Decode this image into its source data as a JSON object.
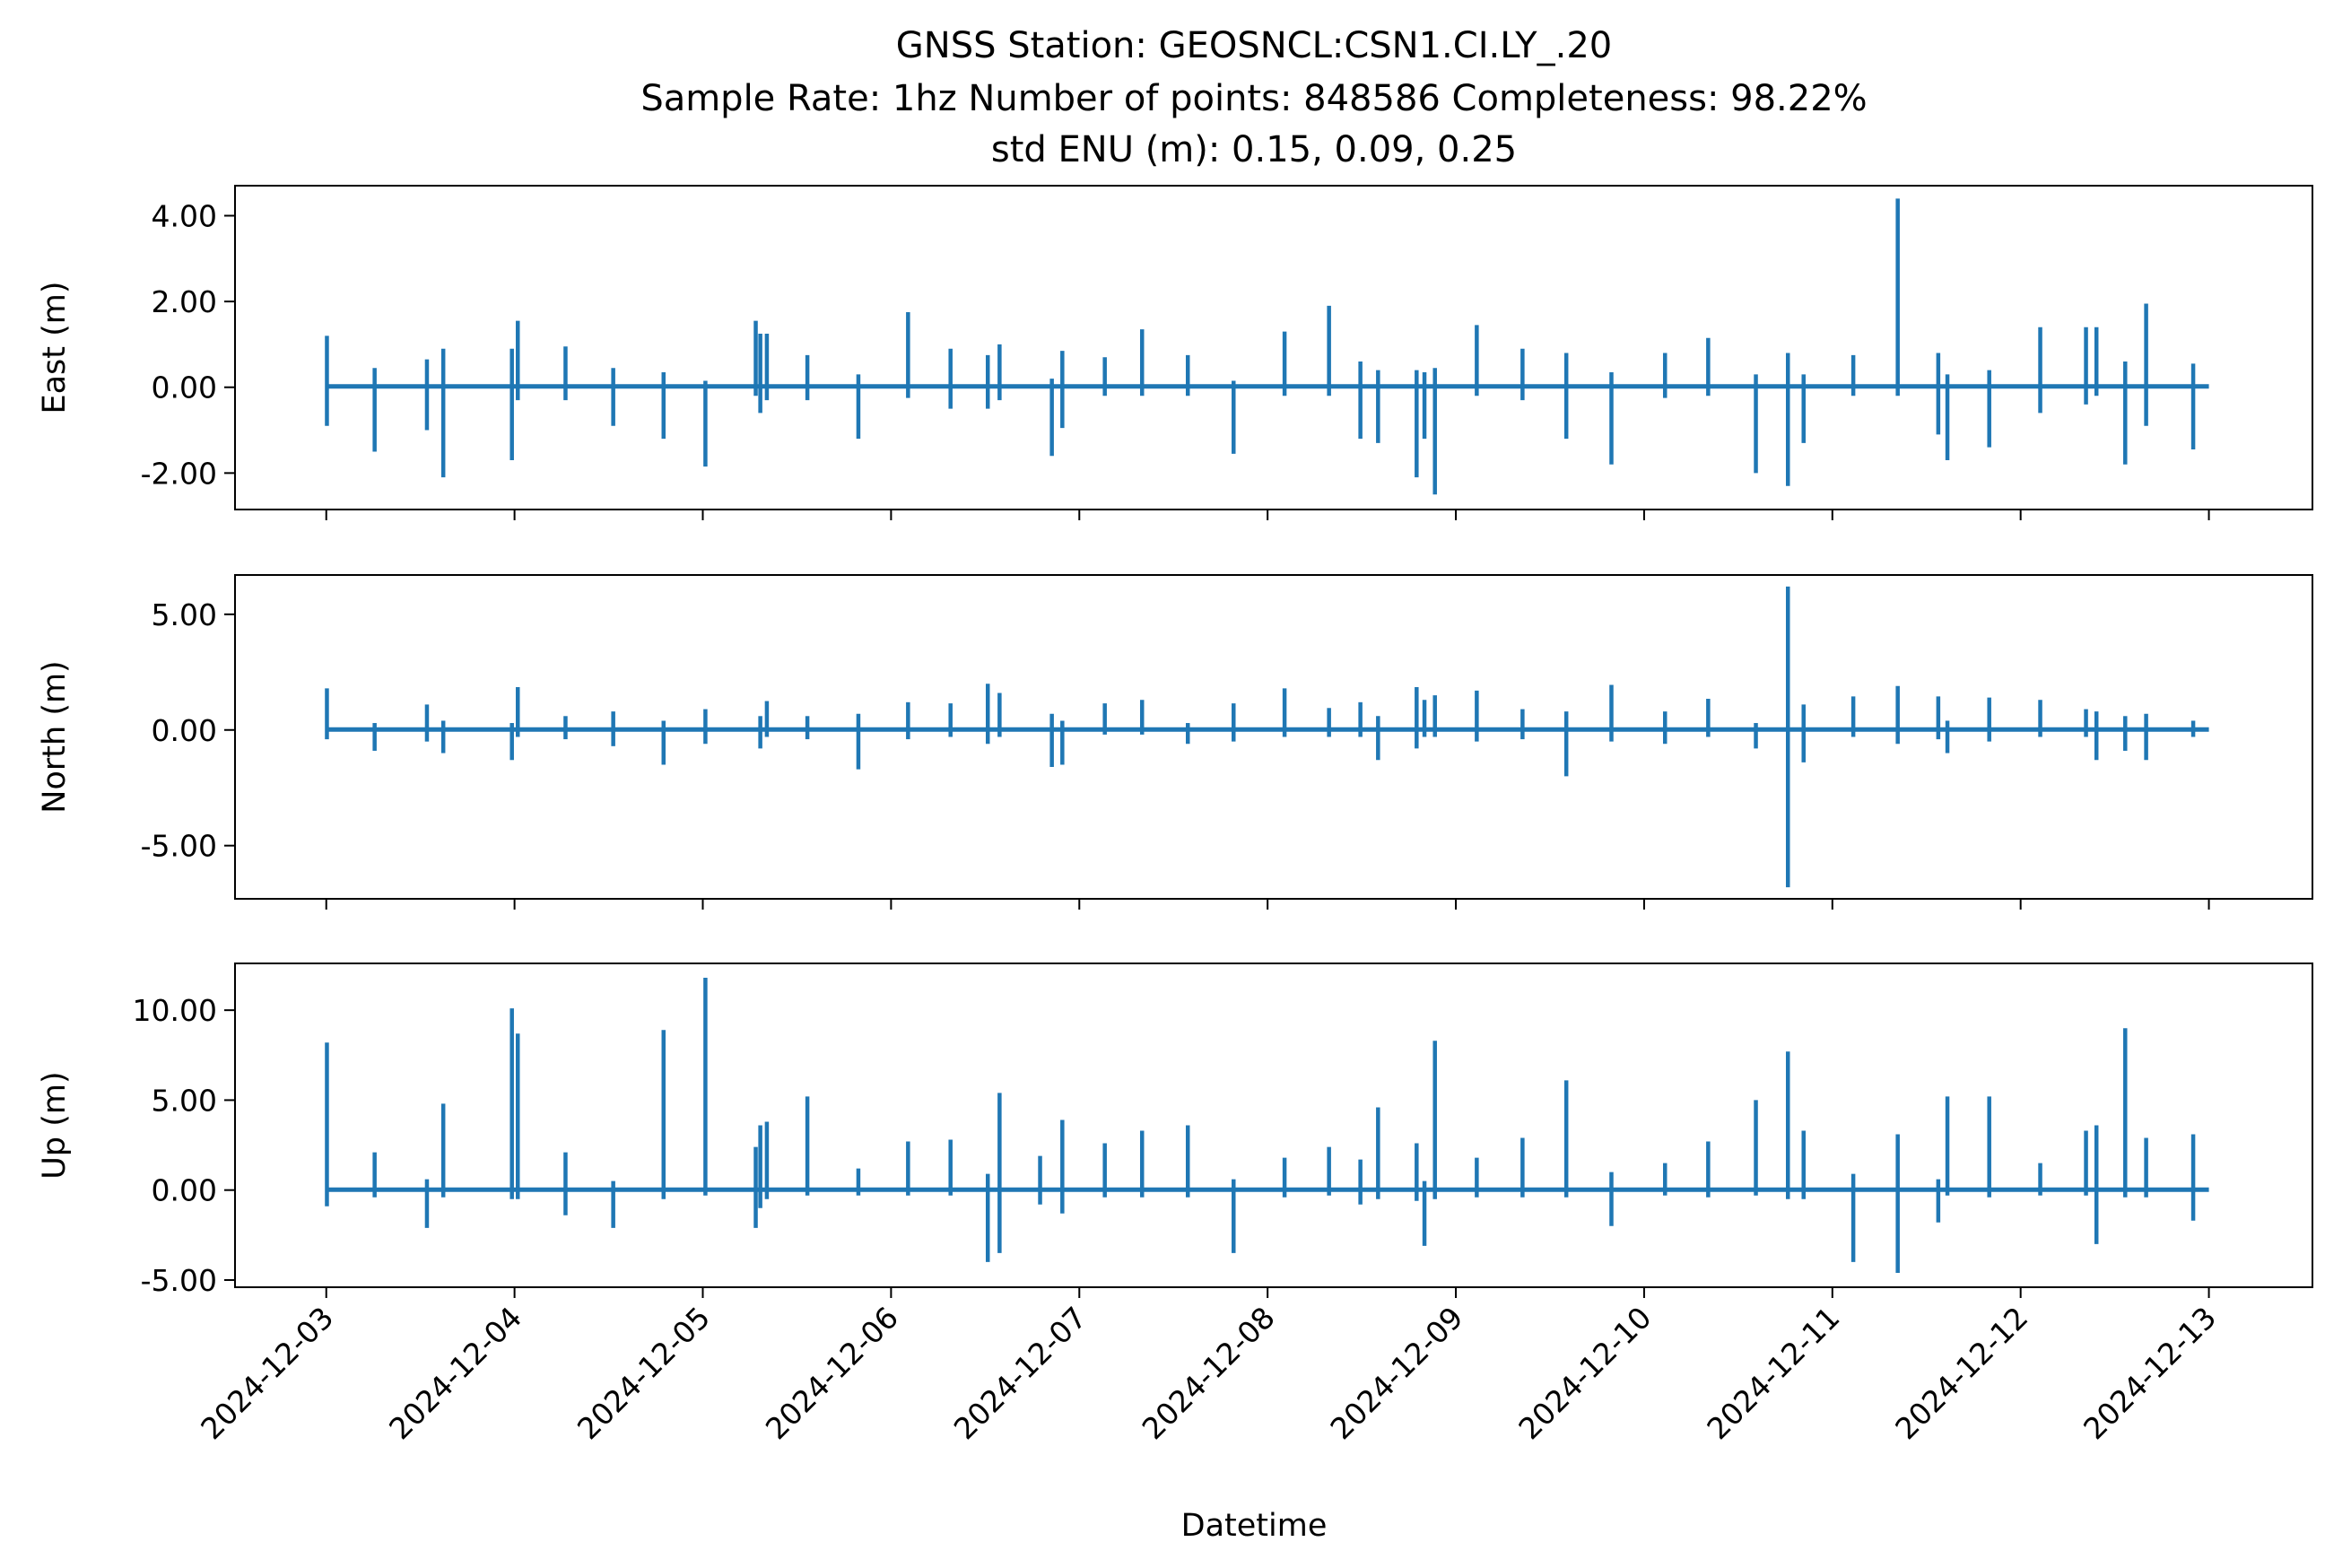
{
  "chart_data": {
    "type": "line",
    "title_lines": [
      "GNSS Station: GEOSNCL:CSN1.CI.LY_.20",
      "Sample Rate: 1hz   Number of points: 848586    Completeness:  98.22%",
      "std ENU (m):  0.15, 0.09, 0.25"
    ],
    "xlabel": "Datetime",
    "x_ticks": [
      "2024-12-03",
      "2024-12-04",
      "2024-12-05",
      "2024-12-06",
      "2024-12-07",
      "2024-12-08",
      "2024-12-09",
      "2024-12-10",
      "2024-12-11",
      "2024-12-12",
      "2024-12-13"
    ],
    "xlim": [
      "2024-12-02T12:22:00",
      "2024-12-13T13:12:00"
    ],
    "line_color": "#1f77b4",
    "panels": [
      {
        "ylabel": "East (m)",
        "ylim": [
          -2.85,
          4.7
        ],
        "y_ticks": [
          4.0,
          2.0,
          0.0,
          -2.0
        ],
        "y_tick_labels": [
          "4.00",
          "2.00",
          "0.00",
          "-2.00"
        ],
        "spikes": [
          {
            "t": "2024-12-03T00:05:00",
            "min": -0.9,
            "max": 1.2
          },
          {
            "t": "2024-12-03T06:10:00",
            "min": -1.5,
            "max": 0.45
          },
          {
            "t": "2024-12-03T12:50:00",
            "min": -1.0,
            "max": 0.65
          },
          {
            "t": "2024-12-03T14:55:00",
            "min": -2.1,
            "max": 0.9
          },
          {
            "t": "2024-12-03T23:40:00",
            "min": -1.7,
            "max": 0.9
          },
          {
            "t": "2024-12-04T00:25:00",
            "min": -0.3,
            "max": 1.55
          },
          {
            "t": "2024-12-04T06:30:00",
            "min": -0.3,
            "max": 0.95
          },
          {
            "t": "2024-12-04T12:35:00",
            "min": -0.9,
            "max": 0.45
          },
          {
            "t": "2024-12-04T19:00:00",
            "min": -1.2,
            "max": 0.35
          },
          {
            "t": "2024-12-05T00:20:00",
            "min": -1.85,
            "max": 0.15
          },
          {
            "t": "2024-12-05T06:45:00",
            "min": -0.2,
            "max": 1.55
          },
          {
            "t": "2024-12-05T07:20:00",
            "min": -0.6,
            "max": 1.25
          },
          {
            "t": "2024-12-05T08:10:00",
            "min": -0.3,
            "max": 1.25
          },
          {
            "t": "2024-12-05T13:20:00",
            "min": -0.3,
            "max": 0.75
          },
          {
            "t": "2024-12-05T19:50:00",
            "min": -1.2,
            "max": 0.3
          },
          {
            "t": "2024-12-06T02:10:00",
            "min": -0.25,
            "max": 1.75
          },
          {
            "t": "2024-12-06T07:35:00",
            "min": -0.5,
            "max": 0.9
          },
          {
            "t": "2024-12-06T12:20:00",
            "min": -0.5,
            "max": 0.75
          },
          {
            "t": "2024-12-06T13:50:00",
            "min": -0.3,
            "max": 1.0
          },
          {
            "t": "2024-12-06T20:30:00",
            "min": -1.6,
            "max": 0.2
          },
          {
            "t": "2024-12-06T21:50:00",
            "min": -0.95,
            "max": 0.85
          },
          {
            "t": "2024-12-07T03:15:00",
            "min": -0.2,
            "max": 0.7
          },
          {
            "t": "2024-12-07T08:00:00",
            "min": -0.2,
            "max": 1.35
          },
          {
            "t": "2024-12-07T13:50:00",
            "min": -0.2,
            "max": 0.75
          },
          {
            "t": "2024-12-07T19:40:00",
            "min": -1.55,
            "max": 0.15
          },
          {
            "t": "2024-12-08T02:10:00",
            "min": -0.2,
            "max": 1.3
          },
          {
            "t": "2024-12-08T07:50:00",
            "min": -0.2,
            "max": 1.9
          },
          {
            "t": "2024-12-08T11:50:00",
            "min": -1.2,
            "max": 0.6
          },
          {
            "t": "2024-12-08T14:05:00",
            "min": -1.3,
            "max": 0.4
          },
          {
            "t": "2024-12-08T19:00:00",
            "min": -2.1,
            "max": 0.4
          },
          {
            "t": "2024-12-08T20:00:00",
            "min": -1.2,
            "max": 0.35
          },
          {
            "t": "2024-12-08T21:20:00",
            "min": -2.5,
            "max": 0.45
          },
          {
            "t": "2024-12-09T02:40:00",
            "min": -0.2,
            "max": 1.45
          },
          {
            "t": "2024-12-09T08:30:00",
            "min": -0.3,
            "max": 0.9
          },
          {
            "t": "2024-12-09T14:05:00",
            "min": -1.2,
            "max": 0.8
          },
          {
            "t": "2024-12-09T19:50:00",
            "min": -1.8,
            "max": 0.35
          },
          {
            "t": "2024-12-10T02:40:00",
            "min": -0.25,
            "max": 0.8
          },
          {
            "t": "2024-12-10T08:10:00",
            "min": -0.2,
            "max": 1.15
          },
          {
            "t": "2024-12-10T14:15:00",
            "min": -2.0,
            "max": 0.3
          },
          {
            "t": "2024-12-10T18:20:00",
            "min": -2.3,
            "max": 0.8
          },
          {
            "t": "2024-12-10T20:20:00",
            "min": -1.3,
            "max": 0.3
          },
          {
            "t": "2024-12-11T02:40:00",
            "min": -0.2,
            "max": 0.75
          },
          {
            "t": "2024-12-11T08:20:00",
            "min": -0.2,
            "max": 4.4
          },
          {
            "t": "2024-12-11T13:30:00",
            "min": -1.1,
            "max": 0.8
          },
          {
            "t": "2024-12-11T14:40:00",
            "min": -1.7,
            "max": 0.3
          },
          {
            "t": "2024-12-11T20:00:00",
            "min": -1.4,
            "max": 0.4
          },
          {
            "t": "2024-12-12T02:30:00",
            "min": -0.6,
            "max": 1.4
          },
          {
            "t": "2024-12-12T08:20:00",
            "min": -0.4,
            "max": 1.4
          },
          {
            "t": "2024-12-12T09:40:00",
            "min": -0.2,
            "max": 1.4
          },
          {
            "t": "2024-12-12T13:20:00",
            "min": -1.8,
            "max": 0.6
          },
          {
            "t": "2024-12-12T16:00:00",
            "min": -0.9,
            "max": 1.95
          },
          {
            "t": "2024-12-12T22:00:00",
            "min": -1.45,
            "max": 0.55
          }
        ]
      },
      {
        "ylabel": "North (m)",
        "ylim": [
          -7.3,
          6.7
        ],
        "y_ticks": [
          5.0,
          0.0,
          -5.0
        ],
        "y_tick_labels": [
          "5.00",
          "0.00",
          "-5.00"
        ],
        "spikes": [
          {
            "t": "2024-12-03T00:05:00",
            "min": -0.4,
            "max": 1.8
          },
          {
            "t": "2024-12-03T06:10:00",
            "min": -0.9,
            "max": 0.3
          },
          {
            "t": "2024-12-03T12:50:00",
            "min": -0.5,
            "max": 1.1
          },
          {
            "t": "2024-12-03T14:55:00",
            "min": -1.0,
            "max": 0.4
          },
          {
            "t": "2024-12-03T23:40:00",
            "min": -1.3,
            "max": 0.3
          },
          {
            "t": "2024-12-04T00:25:00",
            "min": -0.3,
            "max": 1.85
          },
          {
            "t": "2024-12-04T06:30:00",
            "min": -0.4,
            "max": 0.6
          },
          {
            "t": "2024-12-04T12:35:00",
            "min": -0.7,
            "max": 0.8
          },
          {
            "t": "2024-12-04T19:00:00",
            "min": -1.5,
            "max": 0.4
          },
          {
            "t": "2024-12-05T00:20:00",
            "min": -0.6,
            "max": 0.9
          },
          {
            "t": "2024-12-05T07:20:00",
            "min": -0.8,
            "max": 0.6
          },
          {
            "t": "2024-12-05T08:10:00",
            "min": -0.3,
            "max": 1.25
          },
          {
            "t": "2024-12-05T13:20:00",
            "min": -0.4,
            "max": 0.6
          },
          {
            "t": "2024-12-05T19:50:00",
            "min": -1.7,
            "max": 0.7
          },
          {
            "t": "2024-12-06T02:10:00",
            "min": -0.4,
            "max": 1.2
          },
          {
            "t": "2024-12-06T07:35:00",
            "min": -0.3,
            "max": 1.15
          },
          {
            "t": "2024-12-06T12:20:00",
            "min": -0.6,
            "max": 2.0
          },
          {
            "t": "2024-12-06T13:50:00",
            "min": -0.3,
            "max": 1.6
          },
          {
            "t": "2024-12-06T20:30:00",
            "min": -1.6,
            "max": 0.7
          },
          {
            "t": "2024-12-06T21:50:00",
            "min": -1.5,
            "max": 0.4
          },
          {
            "t": "2024-12-07T03:15:00",
            "min": -0.2,
            "max": 1.15
          },
          {
            "t": "2024-12-07T08:00:00",
            "min": -0.2,
            "max": 1.3
          },
          {
            "t": "2024-12-07T13:50:00",
            "min": -0.6,
            "max": 0.3
          },
          {
            "t": "2024-12-07T19:40:00",
            "min": -0.5,
            "max": 1.15
          },
          {
            "t": "2024-12-08T02:10:00",
            "min": -0.3,
            "max": 1.8
          },
          {
            "t": "2024-12-08T07:50:00",
            "min": -0.3,
            "max": 0.95
          },
          {
            "t": "2024-12-08T11:50:00",
            "min": -0.3,
            "max": 1.2
          },
          {
            "t": "2024-12-08T14:05:00",
            "min": -1.3,
            "max": 0.6
          },
          {
            "t": "2024-12-08T19:00:00",
            "min": -0.8,
            "max": 1.85
          },
          {
            "t": "2024-12-08T20:00:00",
            "min": -0.3,
            "max": 1.3
          },
          {
            "t": "2024-12-08T21:20:00",
            "min": -0.3,
            "max": 1.5
          },
          {
            "t": "2024-12-09T02:40:00",
            "min": -0.5,
            "max": 1.7
          },
          {
            "t": "2024-12-09T08:30:00",
            "min": -0.4,
            "max": 0.9
          },
          {
            "t": "2024-12-09T14:05:00",
            "min": -2.0,
            "max": 0.8
          },
          {
            "t": "2024-12-09T19:50:00",
            "min": -0.5,
            "max": 1.95
          },
          {
            "t": "2024-12-10T02:40:00",
            "min": -0.6,
            "max": 0.8
          },
          {
            "t": "2024-12-10T08:10:00",
            "min": -0.3,
            "max": 1.35
          },
          {
            "t": "2024-12-10T14:15:00",
            "min": -0.8,
            "max": 0.3
          },
          {
            "t": "2024-12-10T18:20:00",
            "min": -6.8,
            "max": 6.2
          },
          {
            "t": "2024-12-10T20:20:00",
            "min": -1.4,
            "max": 1.1
          },
          {
            "t": "2024-12-11T02:40:00",
            "min": -0.3,
            "max": 1.45
          },
          {
            "t": "2024-12-11T08:20:00",
            "min": -0.6,
            "max": 1.9
          },
          {
            "t": "2024-12-11T13:30:00",
            "min": -0.4,
            "max": 1.45
          },
          {
            "t": "2024-12-11T14:40:00",
            "min": -1.0,
            "max": 0.4
          },
          {
            "t": "2024-12-11T20:00:00",
            "min": -0.5,
            "max": 1.4
          },
          {
            "t": "2024-12-12T02:30:00",
            "min": -0.3,
            "max": 1.3
          },
          {
            "t": "2024-12-12T08:20:00",
            "min": -0.3,
            "max": 0.9
          },
          {
            "t": "2024-12-12T09:40:00",
            "min": -1.3,
            "max": 0.8
          },
          {
            "t": "2024-12-12T13:20:00",
            "min": -0.9,
            "max": 0.6
          },
          {
            "t": "2024-12-12T16:00:00",
            "min": -1.3,
            "max": 0.7
          },
          {
            "t": "2024-12-12T22:00:00",
            "min": -0.3,
            "max": 0.4
          }
        ]
      },
      {
        "ylabel": "Up (m)",
        "ylim": [
          -5.4,
          12.6
        ],
        "y_ticks": [
          10.0,
          5.0,
          0.0,
          -5.0
        ],
        "y_tick_labels": [
          "10.00",
          "5.00",
          "0.00",
          "-5.00"
        ],
        "spikes": [
          {
            "t": "2024-12-03T00:05:00",
            "min": -0.9,
            "max": 8.2
          },
          {
            "t": "2024-12-03T06:10:00",
            "min": -0.4,
            "max": 2.1
          },
          {
            "t": "2024-12-03T12:50:00",
            "min": -2.1,
            "max": 0.6
          },
          {
            "t": "2024-12-03T14:55:00",
            "min": -0.4,
            "max": 4.8
          },
          {
            "t": "2024-12-03T23:40:00",
            "min": -0.5,
            "max": 10.1
          },
          {
            "t": "2024-12-04T00:25:00",
            "min": -0.5,
            "max": 8.7
          },
          {
            "t": "2024-12-04T06:30:00",
            "min": -1.4,
            "max": 2.1
          },
          {
            "t": "2024-12-04T12:35:00",
            "min": -2.1,
            "max": 0.5
          },
          {
            "t": "2024-12-04T19:00:00",
            "min": -0.5,
            "max": 8.9
          },
          {
            "t": "2024-12-05T00:20:00",
            "min": -0.3,
            "max": 11.8
          },
          {
            "t": "2024-12-05T06:45:00",
            "min": -2.1,
            "max": 2.4
          },
          {
            "t": "2024-12-05T07:20:00",
            "min": -1.0,
            "max": 3.6
          },
          {
            "t": "2024-12-05T08:10:00",
            "min": -0.5,
            "max": 3.8
          },
          {
            "t": "2024-12-05T13:20:00",
            "min": -0.3,
            "max": 5.2
          },
          {
            "t": "2024-12-05T19:50:00",
            "min": -0.3,
            "max": 1.2
          },
          {
            "t": "2024-12-06T02:10:00",
            "min": -0.3,
            "max": 2.7
          },
          {
            "t": "2024-12-06T07:35:00",
            "min": -0.3,
            "max": 2.8
          },
          {
            "t": "2024-12-06T12:20:00",
            "min": -4.0,
            "max": 0.9
          },
          {
            "t": "2024-12-06T13:50:00",
            "min": -3.5,
            "max": 5.4
          },
          {
            "t": "2024-12-06T19:00:00",
            "min": -0.8,
            "max": 1.9
          },
          {
            "t": "2024-12-06T21:50:00",
            "min": -1.3,
            "max": 3.9
          },
          {
            "t": "2024-12-07T03:15:00",
            "min": -0.4,
            "max": 2.6
          },
          {
            "t": "2024-12-07T08:00:00",
            "min": -0.4,
            "max": 3.3
          },
          {
            "t": "2024-12-07T13:50:00",
            "min": -0.4,
            "max": 3.6
          },
          {
            "t": "2024-12-07T19:40:00",
            "min": -3.5,
            "max": 0.6
          },
          {
            "t": "2024-12-08T02:10:00",
            "min": -0.4,
            "max": 1.8
          },
          {
            "t": "2024-12-08T07:50:00",
            "min": -0.3,
            "max": 2.4
          },
          {
            "t": "2024-12-08T11:50:00",
            "min": -0.8,
            "max": 1.7
          },
          {
            "t": "2024-12-08T14:05:00",
            "min": -0.5,
            "max": 4.6
          },
          {
            "t": "2024-12-08T19:00:00",
            "min": -0.6,
            "max": 2.6
          },
          {
            "t": "2024-12-08T20:00:00",
            "min": -3.1,
            "max": 0.5
          },
          {
            "t": "2024-12-08T21:20:00",
            "min": -0.5,
            "max": 8.3
          },
          {
            "t": "2024-12-09T02:40:00",
            "min": -0.4,
            "max": 1.8
          },
          {
            "t": "2024-12-09T08:30:00",
            "min": -0.4,
            "max": 2.9
          },
          {
            "t": "2024-12-09T14:05:00",
            "min": -0.4,
            "max": 6.1
          },
          {
            "t": "2024-12-09T19:50:00",
            "min": -2.0,
            "max": 1.0
          },
          {
            "t": "2024-12-10T02:40:00",
            "min": -0.3,
            "max": 1.5
          },
          {
            "t": "2024-12-10T08:10:00",
            "min": -0.4,
            "max": 2.7
          },
          {
            "t": "2024-12-10T14:15:00",
            "min": -0.3,
            "max": 5.0
          },
          {
            "t": "2024-12-10T18:20:00",
            "min": -0.5,
            "max": 7.7
          },
          {
            "t": "2024-12-10T20:20:00",
            "min": -0.5,
            "max": 3.3
          },
          {
            "t": "2024-12-11T02:40:00",
            "min": -4.0,
            "max": 0.9
          },
          {
            "t": "2024-12-11T08:20:00",
            "min": -4.6,
            "max": 3.1
          },
          {
            "t": "2024-12-11T13:30:00",
            "min": -1.8,
            "max": 0.6
          },
          {
            "t": "2024-12-11T14:40:00",
            "min": -0.3,
            "max": 5.2
          },
          {
            "t": "2024-12-11T20:00:00",
            "min": -0.4,
            "max": 5.2
          },
          {
            "t": "2024-12-12T02:30:00",
            "min": -0.3,
            "max": 1.5
          },
          {
            "t": "2024-12-12T08:20:00",
            "min": -0.3,
            "max": 3.3
          },
          {
            "t": "2024-12-12T09:40:00",
            "min": -3.0,
            "max": 3.6
          },
          {
            "t": "2024-12-12T13:20:00",
            "min": -0.4,
            "max": 9.0
          },
          {
            "t": "2024-12-12T16:00:00",
            "min": -0.4,
            "max": 2.9
          },
          {
            "t": "2024-12-12T22:00:00",
            "min": -1.7,
            "max": 3.1
          }
        ]
      }
    ]
  }
}
